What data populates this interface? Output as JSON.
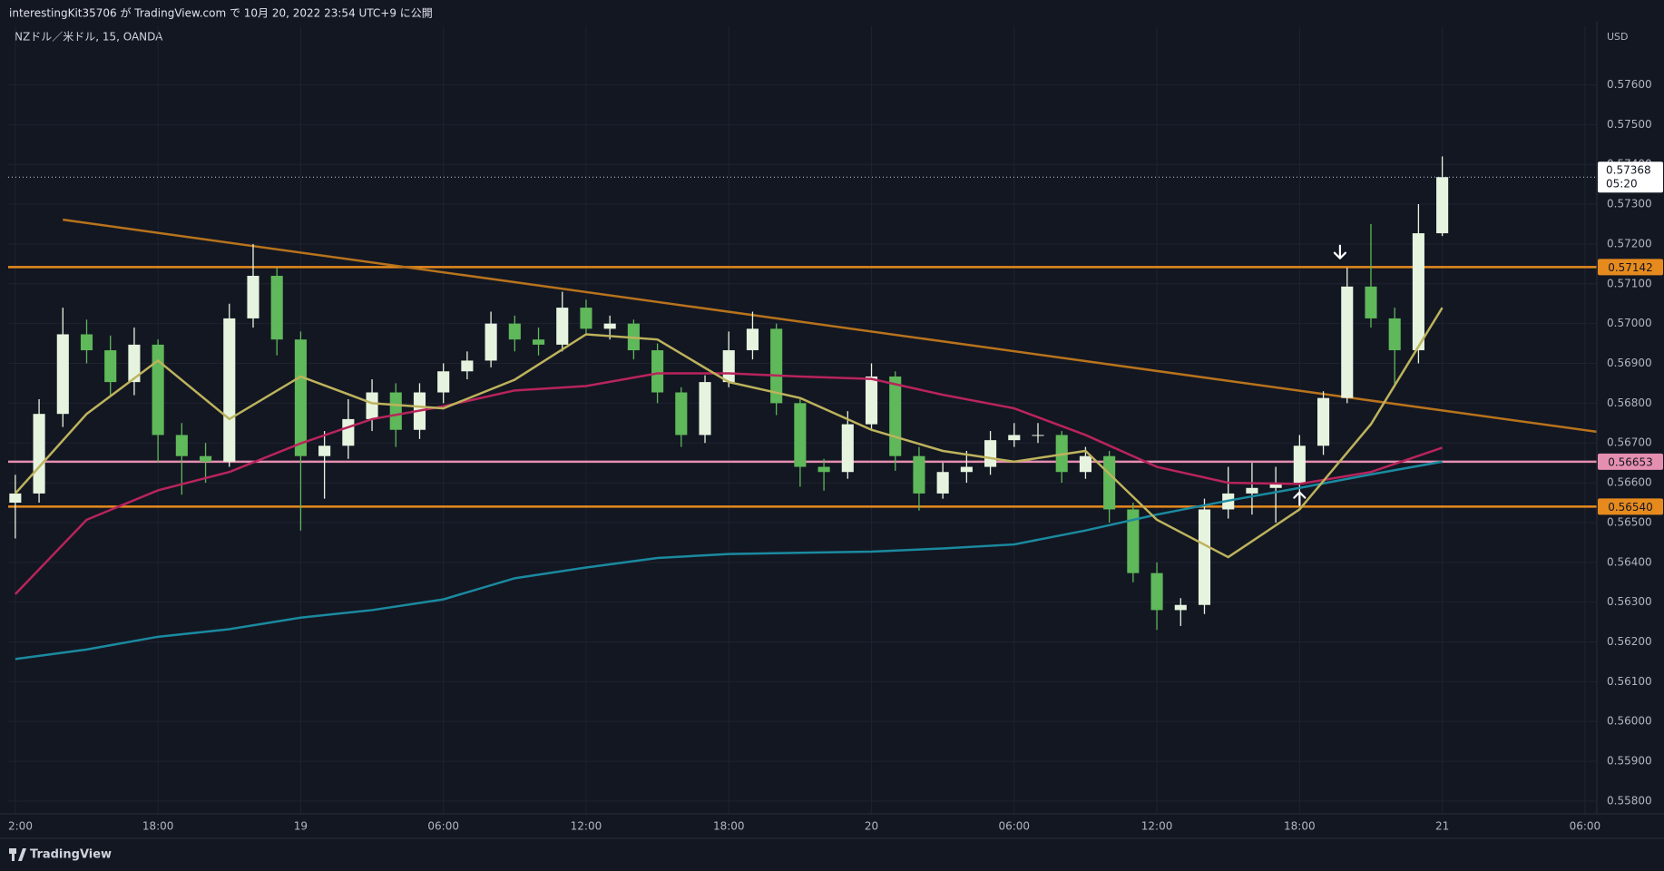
{
  "header": "interestingKit35706 が TradingView.com で 10月 20, 2022 23:54 UTC+9 に公開",
  "footer": "TradingView",
  "chart_data": {
    "type": "candlestick",
    "title": "NZドル／米ドル, 15, OANDA",
    "y_unit_label": "USD",
    "up_color": "#e6f4df",
    "down_color": "#5fb85a",
    "grid": true,
    "xlim": [
      -0.3,
      66.5
    ],
    "ylim": [
      0.55768,
      0.57747
    ],
    "xticks": [
      {
        "value": 0,
        "label": "2:00"
      },
      {
        "value": 6,
        "label": "18:00"
      },
      {
        "value": 12,
        "label": "19"
      },
      {
        "value": 18,
        "label": "06:00"
      },
      {
        "value": 24,
        "label": "12:00"
      },
      {
        "value": 30,
        "label": "18:00"
      },
      {
        "value": 36,
        "label": "20"
      },
      {
        "value": 42,
        "label": "06:00"
      },
      {
        "value": 48,
        "label": "12:00"
      },
      {
        "value": 54,
        "label": "18:00"
      },
      {
        "value": 60,
        "label": "21"
      },
      {
        "value": 66,
        "label": "06:00"
      }
    ],
    "yticks": [
      {
        "value": 0.558,
        "label": "0.55800"
      },
      {
        "value": 0.559,
        "label": "0.55900"
      },
      {
        "value": 0.56,
        "label": "0.56000"
      },
      {
        "value": 0.561,
        "label": "0.56100"
      },
      {
        "value": 0.562,
        "label": "0.56200"
      },
      {
        "value": 0.563,
        "label": "0.56300"
      },
      {
        "value": 0.564,
        "label": "0.56400"
      },
      {
        "value": 0.565,
        "label": "0.56500"
      },
      {
        "value": 0.566,
        "label": "0.56600"
      },
      {
        "value": 0.567,
        "label": "0.56700"
      },
      {
        "value": 0.568,
        "label": "0.56800"
      },
      {
        "value": 0.569,
        "label": "0.56900"
      },
      {
        "value": 0.57,
        "label": "0.57000"
      },
      {
        "value": 0.571,
        "label": "0.57100"
      },
      {
        "value": 0.572,
        "label": "0.57200"
      },
      {
        "value": 0.573,
        "label": "0.57300"
      },
      {
        "value": 0.574,
        "label": "0.57400"
      },
      {
        "value": 0.575,
        "label": "0.57500"
      },
      {
        "value": 0.576,
        "label": "0.57600"
      }
    ],
    "x": [
      0,
      1,
      2,
      3,
      4,
      5,
      6,
      7,
      8,
      9,
      10,
      11,
      12,
      13,
      14,
      15,
      16,
      17,
      18,
      19,
      20,
      21,
      22,
      23,
      24,
      25,
      26,
      27,
      28,
      29,
      30,
      31,
      32,
      33,
      34,
      35,
      36,
      37,
      38,
      39,
      40,
      41,
      42,
      43,
      44,
      45,
      46,
      47,
      48,
      49,
      50,
      51,
      52,
      53,
      54,
      55,
      56,
      57,
      58,
      59,
      60
    ],
    "open": [
      0.5655,
      0.56573,
      0.56773,
      0.56973,
      0.56933,
      0.56853,
      0.56947,
      0.5672,
      0.56667,
      0.56653,
      0.57013,
      0.5712,
      0.5696,
      0.56667,
      0.56693,
      0.5676,
      0.56827,
      0.56733,
      0.56827,
      0.5688,
      0.56907,
      0.57,
      0.5696,
      0.56947,
      0.5704,
      0.56987,
      0.57,
      0.56933,
      0.56827,
      0.5672,
      0.56853,
      0.56933,
      0.56987,
      0.568,
      0.5664,
      0.56627,
      0.56747,
      0.56867,
      0.56667,
      0.56573,
      0.56627,
      0.5664,
      0.56707,
      0.5672,
      0.5672,
      0.56627,
      0.56667,
      0.56533,
      0.56373,
      0.5628,
      0.56293,
      0.56533,
      0.56573,
      0.56587,
      0.566,
      0.56693,
      0.56813,
      0.57093,
      0.57013,
      0.56933,
      0.57227
    ],
    "high": [
      0.5662,
      0.5681,
      0.5704,
      0.5701,
      0.5697,
      0.5699,
      0.5696,
      0.5675,
      0.567,
      0.5705,
      0.572,
      0.5714,
      0.5698,
      0.5673,
      0.5681,
      0.5686,
      0.5685,
      0.5685,
      0.569,
      0.5693,
      0.5703,
      0.5702,
      0.5699,
      0.5708,
      0.5706,
      0.5702,
      0.5701,
      0.5695,
      0.5684,
      0.5687,
      0.5698,
      0.5703,
      0.57,
      0.5681,
      0.5666,
      0.5678,
      0.569,
      0.5688,
      0.5669,
      0.5665,
      0.5668,
      0.5673,
      0.5675,
      0.5675,
      0.5673,
      0.5669,
      0.5668,
      0.5655,
      0.564,
      0.5631,
      0.5656,
      0.5664,
      0.5665,
      0.5664,
      0.5672,
      0.5683,
      0.5714,
      0.5725,
      0.5704,
      0.573,
      0.5742
    ],
    "low": [
      0.5646,
      0.5655,
      0.5674,
      0.569,
      0.5682,
      0.5682,
      0.5665,
      0.5657,
      0.566,
      0.5664,
      0.5699,
      0.5692,
      0.5648,
      0.5656,
      0.5666,
      0.5673,
      0.5669,
      0.5671,
      0.568,
      0.5686,
      0.5689,
      0.5693,
      0.5692,
      0.5693,
      0.5697,
      0.5696,
      0.5691,
      0.568,
      0.5669,
      0.567,
      0.5684,
      0.5691,
      0.5677,
      0.5659,
      0.5658,
      0.5661,
      0.5673,
      0.5663,
      0.5653,
      0.5656,
      0.566,
      0.5662,
      0.5669,
      0.567,
      0.566,
      0.5661,
      0.565,
      0.5635,
      0.5623,
      0.5624,
      0.5627,
      0.5651,
      0.5652,
      0.565,
      0.5657,
      0.5667,
      0.568,
      0.5699,
      0.5684,
      0.569,
      0.5722
    ],
    "close": [
      0.56573,
      0.56773,
      0.56973,
      0.56933,
      0.56853,
      0.56947,
      0.5672,
      0.56667,
      0.56653,
      0.57013,
      0.5712,
      0.5696,
      0.56667,
      0.56693,
      0.5676,
      0.56827,
      0.56733,
      0.56827,
      0.5688,
      0.56907,
      0.57,
      0.5696,
      0.56947,
      0.5704,
      0.56987,
      0.57,
      0.56933,
      0.56827,
      0.5672,
      0.56853,
      0.56933,
      0.56987,
      0.568,
      0.5664,
      0.56627,
      0.56747,
      0.56867,
      0.56667,
      0.56573,
      0.56627,
      0.5664,
      0.56707,
      0.5672,
      0.5672,
      0.56627,
      0.56667,
      0.56533,
      0.56373,
      0.5628,
      0.56293,
      0.56533,
      0.56573,
      0.56587,
      0.566,
      0.56693,
      0.56813,
      0.57093,
      0.57013,
      0.56933,
      0.57227,
      0.57368
    ],
    "ma_x": [
      0,
      3,
      6,
      9,
      12,
      15,
      18,
      21,
      24,
      27,
      30,
      33,
      36,
      39,
      42,
      45,
      48,
      51,
      54,
      57,
      60
    ],
    "moving_averages": [
      {
        "color": "#1a8aa0",
        "values": [
          0.56157,
          0.56181,
          0.56213,
          0.56232,
          0.56261,
          0.5628,
          0.56307,
          0.5636,
          0.56387,
          0.56411,
          0.56421,
          0.56424,
          0.56427,
          0.56435,
          0.56445,
          0.5648,
          0.5652,
          0.56555,
          0.56587,
          0.56621,
          0.56653
        ]
      },
      {
        "color": "#b8245c",
        "values": [
          0.5632,
          0.56507,
          0.56581,
          0.56627,
          0.56699,
          0.5676,
          0.56792,
          0.56832,
          0.56843,
          0.56875,
          0.56875,
          0.56867,
          0.56861,
          0.56821,
          0.56787,
          0.5672,
          0.5664,
          0.566,
          0.56597,
          0.56627,
          0.56688
        ]
      },
      {
        "color": "#bdb35c",
        "values": [
          0.56573,
          0.56773,
          0.56907,
          0.5676,
          0.56867,
          0.568,
          0.56787,
          0.56859,
          0.56973,
          0.5696,
          0.56853,
          0.56813,
          0.56733,
          0.5668,
          0.56653,
          0.5668,
          0.56507,
          0.56413,
          0.56533,
          0.56747,
          0.5704
        ]
      }
    ],
    "trendlines": [
      {
        "color": "#b8731c",
        "x": [
          2,
          66.5
        ],
        "y": [
          0.57261,
          0.56728
        ]
      }
    ],
    "levels": [
      {
        "value": 0.57142,
        "label": "0.57142",
        "color": "#e68a1e"
      },
      {
        "value": 0.56653,
        "label": "0.56653",
        "color": "#e58fb0"
      },
      {
        "value": 0.5654,
        "label": "0.56540",
        "color": "#e68a1e"
      }
    ],
    "last_price": {
      "value": 0.57368,
      "label": "0.57368",
      "countdown": "05:20"
    },
    "markers": [
      {
        "x": 55.7,
        "y": 0.5718,
        "direction": "down"
      },
      {
        "x": 54.0,
        "y": 0.5656,
        "direction": "up"
      }
    ]
  }
}
